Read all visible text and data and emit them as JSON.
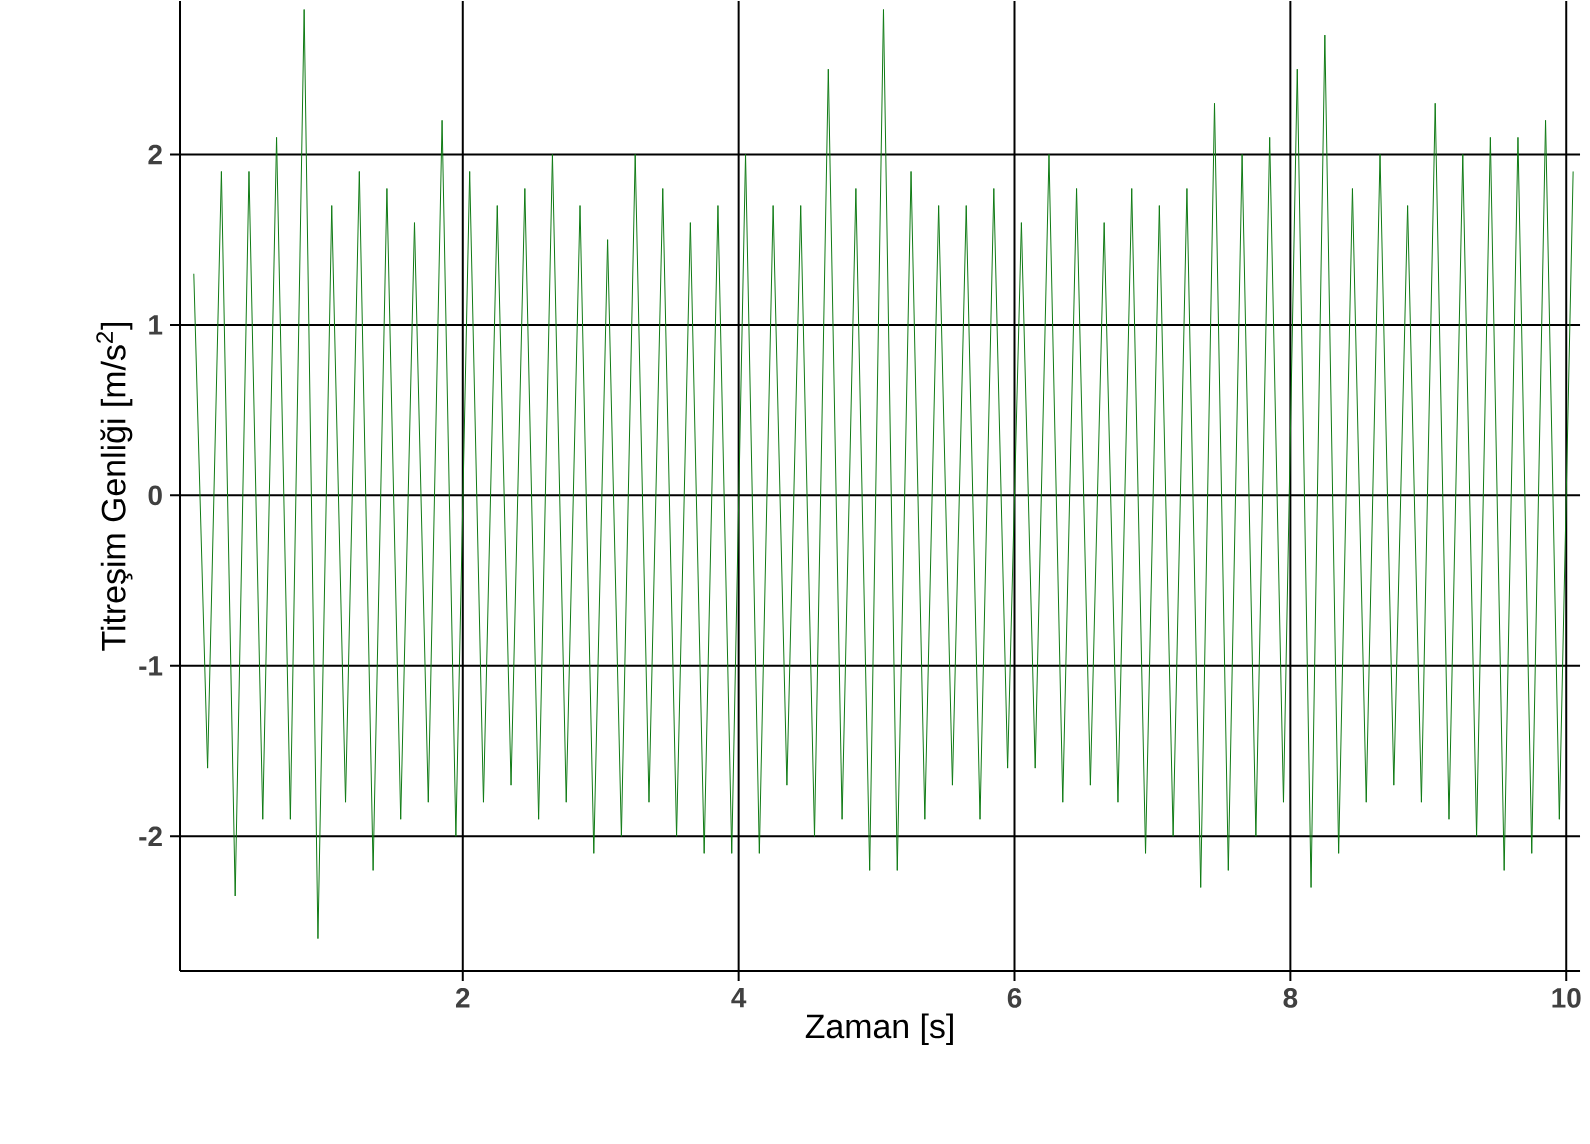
{
  "chart_data": {
    "type": "line",
    "xlabel": "Zaman [s]",
    "ylabel": "Titreşim Genliği [m/s$^{2}$]",
    "xlim": [
      -0.05,
      10.1
    ],
    "ylim": [
      -2.79,
      2.9
    ],
    "xticks": [
      2,
      4,
      6,
      8,
      10
    ],
    "yticks": [
      -2,
      -1,
      0,
      1,
      2
    ],
    "grid": true,
    "marker": "none",
    "line_style": "solid",
    "series": [
      {
        "color": "#0f7a14",
        "x": [
          0.05,
          0.15,
          0.25,
          0.35,
          0.45,
          0.55,
          0.65,
          0.75,
          0.85,
          0.95,
          1.05,
          1.15,
          1.25,
          1.35,
          1.45,
          1.55,
          1.65,
          1.75,
          1.85,
          1.95,
          2.05,
          2.15,
          2.25,
          2.35,
          2.45,
          2.55,
          2.65,
          2.75,
          2.85,
          2.95,
          3.05,
          3.15,
          3.25,
          3.35,
          3.45,
          3.55,
          3.65,
          3.75,
          3.85,
          3.95,
          4.05,
          4.15,
          4.25,
          4.35,
          4.45,
          4.55,
          4.65,
          4.75,
          4.85,
          4.95,
          5.05,
          5.15,
          5.25,
          5.35,
          5.45,
          5.55,
          5.65,
          5.75,
          5.85,
          5.95,
          6.05,
          6.15,
          6.25,
          6.35,
          6.45,
          6.55,
          6.65,
          6.75,
          6.85,
          6.95,
          7.05,
          7.15,
          7.25,
          7.35,
          7.45,
          7.55,
          7.65,
          7.75,
          7.85,
          7.95,
          8.05,
          8.15,
          8.25,
          8.35,
          8.45,
          8.55,
          8.65,
          8.75,
          8.85,
          8.95,
          9.05,
          9.15,
          9.25,
          9.35,
          9.45,
          9.55,
          9.65,
          9.75,
          9.85,
          9.95,
          10.05
        ],
        "values": [
          1.3,
          -1.6,
          1.9,
          -2.35,
          1.9,
          -1.9,
          2.1,
          -1.9,
          2.85,
          -2.6,
          1.7,
          -1.8,
          1.9,
          -2.2,
          1.8,
          -1.9,
          1.6,
          -1.8,
          2.2,
          -2.0,
          1.9,
          -1.8,
          1.7,
          -1.7,
          1.8,
          -1.9,
          2.0,
          -1.8,
          1.7,
          -2.1,
          1.5,
          -2.0,
          2.0,
          -1.8,
          1.8,
          -2.0,
          1.6,
          -2.1,
          1.7,
          -2.1,
          2.0,
          -2.1,
          1.7,
          -1.7,
          1.7,
          -2.0,
          2.5,
          -1.9,
          1.8,
          -2.2,
          2.85,
          -2.2,
          1.9,
          -1.9,
          1.7,
          -1.7,
          1.7,
          -1.9,
          1.8,
          -1.6,
          1.6,
          -1.6,
          2.0,
          -1.8,
          1.8,
          -1.7,
          1.6,
          -1.8,
          1.8,
          -2.1,
          1.7,
          -2.0,
          1.8,
          -2.3,
          2.3,
          -2.2,
          2.0,
          -2.0,
          2.1,
          -1.8,
          2.5,
          -2.3,
          2.7,
          -2.1,
          1.8,
          -1.8,
          2.0,
          -1.7,
          1.7,
          -1.8,
          2.3,
          -1.9,
          2.0,
          -2.0,
          2.1,
          -2.2,
          2.1,
          -2.1,
          2.2,
          -1.9,
          1.9
        ]
      }
    ]
  }
}
